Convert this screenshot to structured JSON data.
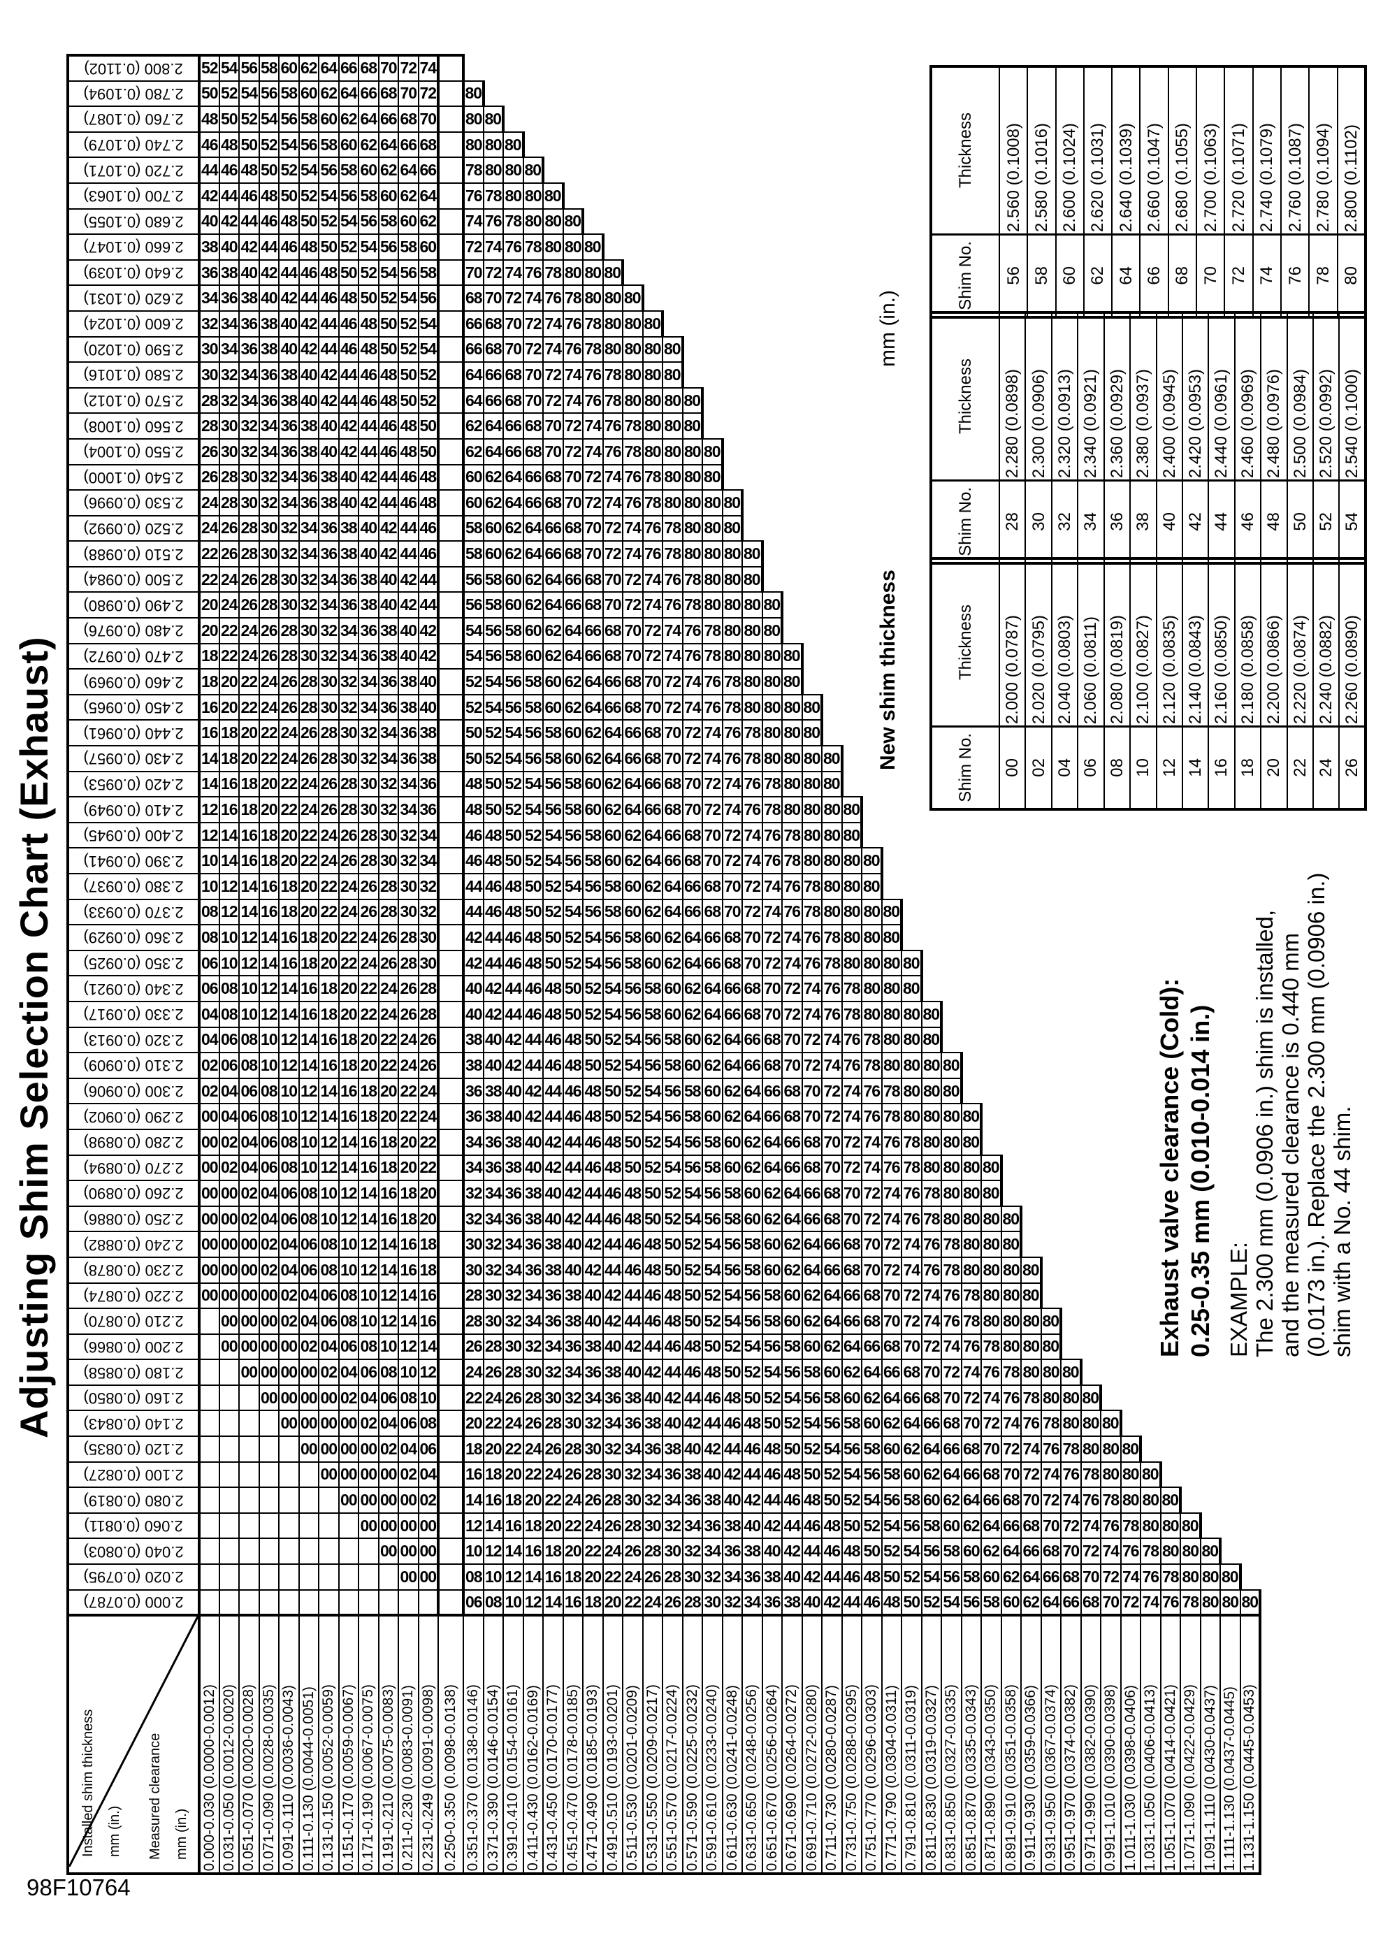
{
  "page": {
    "title": "Adjusting Shim Selection Chart (Exhaust)",
    "id_code": "98F10764",
    "orientation_note": "landscape chart printed rotated 90deg CCW on portrait page"
  },
  "matrix": {
    "corner": {
      "col_header_label": "Installed shim thickness",
      "col_header_units": "mm (in.)",
      "row_header_label": "Measured clearance",
      "row_header_units": "mm (in.)"
    },
    "ok_column_index": 12,
    "columns": [
      {
        "label": "0.000-0.030 (0.0000-0.0012)",
        "lo": 0,
        "hi": 30,
        "delta": -28
      },
      {
        "label": "0.031-0.050 (0.0012-0.0020)",
        "lo": 31,
        "hi": 50,
        "delta": -26
      },
      {
        "label": "0.051-0.070 (0.0020-0.0028)",
        "lo": 51,
        "hi": 70,
        "delta": -24
      },
      {
        "label": "0.071-0.090 (0.0028-0.0035)",
        "lo": 71,
        "hi": 90,
        "delta": -22
      },
      {
        "label": "0.091-0.110 (0.0036-0.0043)",
        "lo": 91,
        "hi": 110,
        "delta": -20
      },
      {
        "label": "0.111-0.130 (0.0044-0.0051)",
        "lo": 111,
        "hi": 130,
        "delta": -18
      },
      {
        "label": "0.131-0.150 (0.0052-0.0059)",
        "lo": 131,
        "hi": 150,
        "delta": -16
      },
      {
        "label": "0.151-0.170 (0.0059-0.0067)",
        "lo": 151,
        "hi": 170,
        "delta": -14
      },
      {
        "label": "0.171-0.190 (0.0067-0.0075)",
        "lo": 171,
        "hi": 190,
        "delta": -12
      },
      {
        "label": "0.191-0.210 (0.0075-0.0083)",
        "lo": 191,
        "hi": 210,
        "delta": -10
      },
      {
        "label": "0.211-0.230 (0.0083-0.0091)",
        "lo": 211,
        "hi": 230,
        "delta": -8
      },
      {
        "label": "0.231-0.249 (0.0091-0.0098)",
        "lo": 231,
        "hi": 249,
        "delta": -6
      },
      {
        "label": "0.250-0.350 (0.0098-0.0138)",
        "lo": 250,
        "hi": 350,
        "delta": null
      },
      {
        "label": "0.351-0.370 (0.0138-0.0146)",
        "lo": 351,
        "hi": 370,
        "delta": 6
      },
      {
        "label": "0.371-0.390 (0.0146-0.0154)",
        "lo": 371,
        "hi": 390,
        "delta": 8
      },
      {
        "label": "0.391-0.410 (0.0154-0.0161)",
        "lo": 391,
        "hi": 410,
        "delta": 10
      },
      {
        "label": "0.411-0.430 (0.0162-0.0169)",
        "lo": 411,
        "hi": 430,
        "delta": 12
      },
      {
        "label": "0.431-0.450 (0.0170-0.0177)",
        "lo": 431,
        "hi": 450,
        "delta": 14
      },
      {
        "label": "0.451-0.470 (0.0178-0.0185)",
        "lo": 451,
        "hi": 470,
        "delta": 16
      },
      {
        "label": "0.471-0.490 (0.0185-0.0193)",
        "lo": 471,
        "hi": 490,
        "delta": 18
      },
      {
        "label": "0.491-0.510 (0.0193-0.0201)",
        "lo": 491,
        "hi": 510,
        "delta": 20
      },
      {
        "label": "0.511-0.530 (0.0201-0.0209)",
        "lo": 511,
        "hi": 530,
        "delta": 22
      },
      {
        "label": "0.531-0.550 (0.0209-0.0217)",
        "lo": 531,
        "hi": 550,
        "delta": 24
      },
      {
        "label": "0.551-0.570 (0.0217-0.0224)",
        "lo": 551,
        "hi": 570,
        "delta": 26
      },
      {
        "label": "0.571-0.590 (0.0225-0.0232)",
        "lo": 571,
        "hi": 590,
        "delta": 28
      },
      {
        "label": "0.591-0.610 (0.0233-0.0240)",
        "lo": 591,
        "hi": 610,
        "delta": 30
      },
      {
        "label": "0.611-0.630 (0.0241-0.0248)",
        "lo": 611,
        "hi": 630,
        "delta": 32
      },
      {
        "label": "0.631-0.650 (0.0248-0.0256)",
        "lo": 631,
        "hi": 650,
        "delta": 34
      },
      {
        "label": "0.651-0.670 (0.0256-0.0264)",
        "lo": 651,
        "hi": 670,
        "delta": 36
      },
      {
        "label": "0.671-0.690 (0.0264-0.0272)",
        "lo": 671,
        "hi": 690,
        "delta": 38
      },
      {
        "label": "0.691-0.710 (0.0272-0.0280)",
        "lo": 691,
        "hi": 710,
        "delta": 40
      },
      {
        "label": "0.711-0.730 (0.0280-0.0287)",
        "lo": 711,
        "hi": 730,
        "delta": 42
      },
      {
        "label": "0.731-0.750 (0.0288-0.0295)",
        "lo": 731,
        "hi": 750,
        "delta": 44
      },
      {
        "label": "0.751-0.770 (0.0296-0.0303)",
        "lo": 751,
        "hi": 770,
        "delta": 46
      },
      {
        "label": "0.771-0.790 (0.0304-0.0311)",
        "lo": 771,
        "hi": 790,
        "delta": 48
      },
      {
        "label": "0.791-0.810 (0.0311-0.0319)",
        "lo": 791,
        "hi": 810,
        "delta": 50
      },
      {
        "label": "0.811-0.830 (0.0319-0.0327)",
        "lo": 811,
        "hi": 830,
        "delta": 52
      },
      {
        "label": "0.831-0.850 (0.0327-0.0335)",
        "lo": 831,
        "hi": 850,
        "delta": 54
      },
      {
        "label": "0.851-0.870 (0.0335-0.0343)",
        "lo": 851,
        "hi": 870,
        "delta": 56
      },
      {
        "label": "0.871-0.890 (0.0343-0.0350)",
        "lo": 871,
        "hi": 890,
        "delta": 58
      },
      {
        "label": "0.891-0.910 (0.0351-0.0358)",
        "lo": 891,
        "hi": 910,
        "delta": 60
      },
      {
        "label": "0.911-0.930 (0.0359-0.0366)",
        "lo": 911,
        "hi": 930,
        "delta": 62
      },
      {
        "label": "0.931-0.950 (0.0367-0.0374)",
        "lo": 931,
        "hi": 950,
        "delta": 64
      },
      {
        "label": "0.951-0.970 (0.0374-0.0382)",
        "lo": 951,
        "hi": 970,
        "delta": 66
      },
      {
        "label": "0.971-0.990 (0.0382-0.0390)",
        "lo": 971,
        "hi": 990,
        "delta": 68
      },
      {
        "label": "0.991-1.010 (0.0390-0.0398)",
        "lo": 991,
        "hi": 1010,
        "delta": 70
      },
      {
        "label": "1.011-1.030 (0.0398-0.0406)",
        "lo": 1011,
        "hi": 1030,
        "delta": 72
      },
      {
        "label": "1.031-1.050 (0.0406-0.0413)",
        "lo": 1031,
        "hi": 1050,
        "delta": 74
      },
      {
        "label": "1.051-1.070 (0.0414-0.0421)",
        "lo": 1051,
        "hi": 1070,
        "delta": 76
      },
      {
        "label": "1.071-1.090 (0.0422-0.0429)",
        "lo": 1071,
        "hi": 1090,
        "delta": 78
      },
      {
        "label": "1.091-1.110 (0.0430-0.0437)",
        "lo": 1091,
        "hi": 1110,
        "delta": 80
      },
      {
        "label": "1.111-1.130 (0.0437-0.0445)",
        "lo": 1111,
        "hi": 1130,
        "delta": 82
      },
      {
        "label": "1.131-1.150 (0.0445-0.0453)",
        "lo": 1131,
        "hi": 1150,
        "delta": 84
      }
    ],
    "rows": [
      {
        "label": "2.800 (0.1102)",
        "t": 80
      },
      {
        "label": "2.780 (0.1094)",
        "t": 78
      },
      {
        "label": "2.760 (0.1087)",
        "t": 76
      },
      {
        "label": "2.740 (0.1079)",
        "t": 74
      },
      {
        "label": "2.720 (0.1071)",
        "t": 72
      },
      {
        "label": "2.700 (0.1063)",
        "t": 70
      },
      {
        "label": "2.680 (0.1055)",
        "t": 68
      },
      {
        "label": "2.660 (0.1047)",
        "t": 66
      },
      {
        "label": "2.640 (0.1039)",
        "t": 64
      },
      {
        "label": "2.620 (0.1031)",
        "t": 62
      },
      {
        "label": "2.600 (0.1024)",
        "t": 60
      },
      {
        "label": "2.590 (0.1020)",
        "t": 59
      },
      {
        "label": "2.580 (0.1016)",
        "t": 58
      },
      {
        "label": "2.570 (0.1012)",
        "t": 57
      },
      {
        "label": "2.560 (0.1008)",
        "t": 56
      },
      {
        "label": "2.550 (0.1004)",
        "t": 55
      },
      {
        "label": "2.540 (0.1000)",
        "t": 54
      },
      {
        "label": "2.530 (0.0996)",
        "t": 53
      },
      {
        "label": "2.520 (0.0992)",
        "t": 52
      },
      {
        "label": "2.510 (0.0988)",
        "t": 51
      },
      {
        "label": "2.500 (0.0984)",
        "t": 50
      },
      {
        "label": "2.490 (0.0980)",
        "t": 49
      },
      {
        "label": "2.480 (0.0976)",
        "t": 48
      },
      {
        "label": "2.470 (0.0972)",
        "t": 47
      },
      {
        "label": "2.460 (0.0969)",
        "t": 46
      },
      {
        "label": "2.450 (0.0965)",
        "t": 45
      },
      {
        "label": "2.440 (0.0961)",
        "t": 44
      },
      {
        "label": "2.430 (0.0957)",
        "t": 43
      },
      {
        "label": "2.420 (0.0953)",
        "t": 42
      },
      {
        "label": "2.410 (0.0949)",
        "t": 41
      },
      {
        "label": "2.400 (0.0945)",
        "t": 40
      },
      {
        "label": "2.390 (0.0941)",
        "t": 39
      },
      {
        "label": "2.380 (0.0937)",
        "t": 38
      },
      {
        "label": "2.370 (0.0933)",
        "t": 37
      },
      {
        "label": "2.360 (0.0929)",
        "t": 36
      },
      {
        "label": "2.350 (0.0925)",
        "t": 35
      },
      {
        "label": "2.340 (0.0921)",
        "t": 34
      },
      {
        "label": "2.330 (0.0917)",
        "t": 33
      },
      {
        "label": "2.320 (0.0913)",
        "t": 32
      },
      {
        "label": "2.310 (0.0909)",
        "t": 31
      },
      {
        "label": "2.300 (0.0906)",
        "t": 30
      },
      {
        "label": "2.290 (0.0902)",
        "t": 29
      },
      {
        "label": "2.280 (0.0898)",
        "t": 28
      },
      {
        "label": "2.270 (0.0894)",
        "t": 27
      },
      {
        "label": "2.260 (0.0890)",
        "t": 26
      },
      {
        "label": "2.250 (0.0886)",
        "t": 25
      },
      {
        "label": "2.240 (0.0882)",
        "t": 24
      },
      {
        "label": "2.230 (0.0878)",
        "t": 23
      },
      {
        "label": "2.220 (0.0874)",
        "t": 22
      },
      {
        "label": "2.210 (0.0870)",
        "t": 21
      },
      {
        "label": "2.200 (0.0866)",
        "t": 20
      },
      {
        "label": "2.180 (0.0858)",
        "t": 18
      },
      {
        "label": "2.160 (0.0850)",
        "t": 16
      },
      {
        "label": "2.140 (0.0843)",
        "t": 14
      },
      {
        "label": "2.120 (0.0835)",
        "t": 12
      },
      {
        "label": "2.100 (0.0827)",
        "t": 10
      },
      {
        "label": "2.080 (0.0819)",
        "t": 8
      },
      {
        "label": "2.060 (0.0811)",
        "t": 6
      },
      {
        "label": "2.040 (0.0803)",
        "t": 4
      },
      {
        "label": "2.020 (0.0795)",
        "t": 2
      },
      {
        "label": "2.000 (0.0787)",
        "t": 0
      }
    ],
    "generation": {
      "description": "cell = new shim No. t is installed thickness in 0.01mm above 2.000; lo/hi are clearance range bounds in 0.001mm",
      "value": "v = t' + delta, where t' = t if t even, else (t-1 for first column, t+1 otherwise)",
      "if_v_below_00": "show 00 when 10*t + hi >= 250, else bordered blank cell",
      "if_v_above_80": "show 80 when 10*t + lo <= 1150, else no cell (outside stepped table edge)",
      "ok_column": "0.250-0.350 column is always a bordered empty cell"
    }
  },
  "new_shim_table": {
    "title": "New shim thickness",
    "units": "mm (in.)",
    "col_headers": {
      "shim_no": "Shim No.",
      "thickness": "Thickness"
    },
    "groups": [
      {
        "shim_nos": [
          "56",
          "58",
          "60",
          "62",
          "64",
          "66",
          "68",
          "70",
          "72",
          "74",
          "76",
          "78",
          "80"
        ],
        "thicknesses": [
          "2.560 (0.1008)",
          "2.580 (0.1016)",
          "2.600 (0.1024)",
          "2.620 (0.1031)",
          "2.640 (0.1039)",
          "2.660 (0.1047)",
          "2.680 (0.1055)",
          "2.700 (0.1063)",
          "2.720 (0.1071)",
          "2.740 (0.1079)",
          "2.760 (0.1087)",
          "2.780 (0.1094)",
          "2.800 (0.1102)"
        ]
      },
      {
        "shim_nos": [
          "28",
          "30",
          "32",
          "34",
          "36",
          "38",
          "40",
          "42",
          "44",
          "46",
          "48",
          "50",
          "52",
          "54"
        ],
        "thicknesses": [
          "2.280 (0.0898)",
          "2.300 (0.0906)",
          "2.320 (0.0913)",
          "2.340 (0.0921)",
          "2.360 (0.0929)",
          "2.380 (0.0937)",
          "2.400 (0.0945)",
          "2.420 (0.0953)",
          "2.440 (0.0961)",
          "2.460 (0.0969)",
          "2.480 (0.0976)",
          "2.500 (0.0984)",
          "2.520 (0.0992)",
          "2.540 (0.1000)"
        ]
      },
      {
        "shim_nos": [
          "00",
          "02",
          "04",
          "06",
          "08",
          "10",
          "12",
          "14",
          "16",
          "18",
          "20",
          "22",
          "24",
          "26"
        ],
        "thicknesses": [
          "2.000 (0.0787)",
          "2.020 (0.0795)",
          "2.040 (0.0803)",
          "2.060 (0.0811)",
          "2.080 (0.0819)",
          "2.100 (0.0827)",
          "2.120 (0.0835)",
          "2.140 (0.0843)",
          "2.160 (0.0850)",
          "2.180 (0.0858)",
          "2.200 (0.0866)",
          "2.220 (0.0874)",
          "2.240 (0.0882)",
          "2.260 (0.0890)"
        ]
      }
    ]
  },
  "notes": {
    "spec_line1": "Exhaust valve clearance (Cold):",
    "spec_line2": "0.25-0.35 mm (0.010-0.014 in.)",
    "example_heading": "EXAMPLE:",
    "example_lines": [
      "The 2.300 mm (0.0906 in.) shim is installed,",
      "and the measured clearance is 0.440 mm",
      "(0.0173 in.). Replace the 2.300 mm (0.0906 in.)",
      "shim with a No. 44 shim."
    ]
  }
}
